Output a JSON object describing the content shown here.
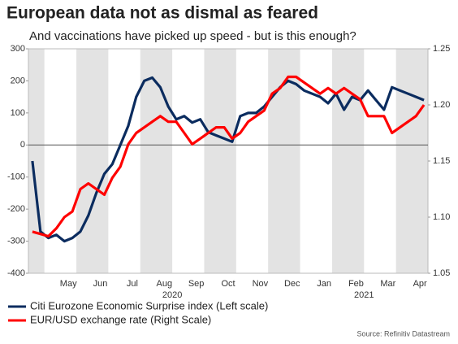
{
  "chart_data": {
    "type": "line",
    "title": "European data not as dismal as feared",
    "subtitle": "And vaccinations have picked up speed - but is this enough?",
    "source": "Source: Refinitiv Datastream",
    "categories": [
      null,
      null,
      null,
      null,
      "May",
      null,
      null,
      null,
      "Jun",
      null,
      null,
      null,
      "Jul",
      null,
      null,
      null,
      "Aug",
      null,
      null,
      null,
      "Sep",
      null,
      null,
      null,
      "Oct",
      null,
      null,
      null,
      "Nov",
      null,
      null,
      null,
      "Dec",
      null,
      null,
      null,
      "Jan",
      null,
      null,
      null,
      "Feb",
      null,
      null,
      null,
      "Mar",
      null,
      null,
      null,
      "Apr",
      null
    ],
    "year_labels": [
      "2020",
      "2021"
    ],
    "series": [
      {
        "name": "Citi Eurozone Economic Surprise index (Left scale)",
        "color": "#0b2c5f",
        "values": [
          -50,
          -270,
          -290,
          -280,
          -300,
          -290,
          -270,
          -220,
          -150,
          -90,
          -60,
          0,
          60,
          150,
          200,
          210,
          180,
          120,
          80,
          90,
          70,
          80,
          40,
          30,
          20,
          10,
          90,
          100,
          100,
          120,
          150,
          180,
          200,
          190,
          170,
          160,
          150,
          130,
          160,
          110,
          150,
          140,
          170,
          140,
          110,
          180,
          170,
          160,
          150,
          140
        ]
      },
      {
        "name": "EUR/USD exchange rate (Right Scale)",
        "color": "#ff0000",
        "axis": "y2",
        "values": [
          1.087,
          1.085,
          1.083,
          1.09,
          1.1,
          1.105,
          1.125,
          1.13,
          1.125,
          1.12,
          1.135,
          1.145,
          1.165,
          1.175,
          1.18,
          1.185,
          1.19,
          1.185,
          1.185,
          1.175,
          1.165,
          1.17,
          1.175,
          1.18,
          1.18,
          1.17,
          1.175,
          1.185,
          1.19,
          1.195,
          1.21,
          1.215,
          1.225,
          1.225,
          1.22,
          1.215,
          1.21,
          1.215,
          1.21,
          1.215,
          1.21,
          1.205,
          1.19,
          1.19,
          1.19,
          1.175,
          1.18,
          1.185,
          1.19,
          1.2
        ]
      }
    ],
    "ylim": [
      -400,
      300
    ],
    "yticks": [
      -400,
      -300,
      -200,
      -100,
      0,
      100,
      200,
      300
    ],
    "y2lim": [
      1.05,
      1.25
    ],
    "y2ticks": [
      1.05,
      {
        "value": 1.1,
        "label": "1.10"
      },
      1.15,
      {
        "value": 1.2,
        "label": "1.20"
      },
      1.25
    ],
    "legend": "bottom-left",
    "grid": false
  }
}
